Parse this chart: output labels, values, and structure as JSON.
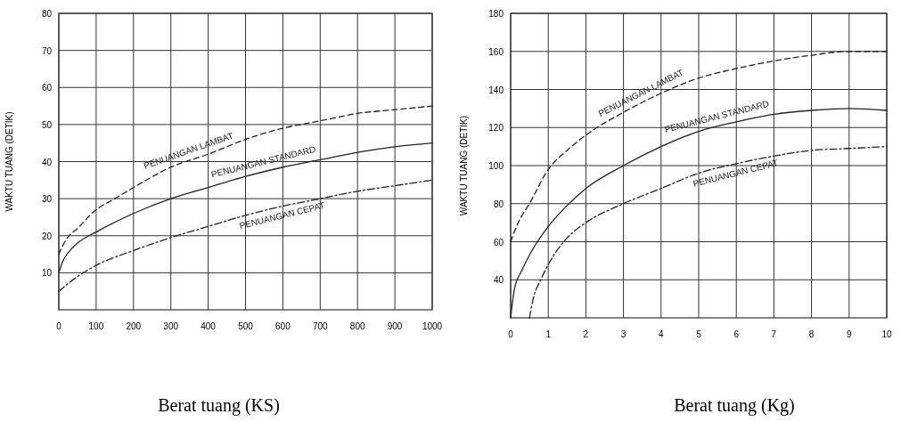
{
  "chart_data": [
    {
      "type": "line",
      "xlabel": "Berat tuang (KS)",
      "ylabel": "WAKTU TUANG (DETIK)",
      "xlim": [
        0,
        1000
      ],
      "ylim": [
        0,
        80
      ],
      "xticks": [
        0,
        100,
        200,
        300,
        400,
        500,
        600,
        700,
        800,
        900,
        1000
      ],
      "yticks": [
        10,
        20,
        30,
        40,
        50,
        60,
        70,
        80
      ],
      "grid": true,
      "series": [
        {
          "name": "PENUANGAN LAMBAT",
          "color": "#222222",
          "line_style": "dashed",
          "x": [
            0,
            20,
            50,
            100,
            150,
            200,
            300,
            400,
            500,
            600,
            700,
            800,
            900,
            1000
          ],
          "values": [
            15,
            19,
            22,
            27,
            30,
            33,
            38.5,
            42,
            46,
            49,
            51,
            53,
            54,
            55
          ]
        },
        {
          "name": "PENUANGAN STANDARD",
          "color": "#222222",
          "line_style": "solid",
          "x": [
            0,
            10,
            30,
            50,
            100,
            200,
            300,
            400,
            500,
            600,
            700,
            800,
            900,
            1000
          ],
          "values": [
            10,
            13,
            16,
            18,
            21,
            26,
            30,
            33,
            36,
            38.5,
            40.5,
            42.5,
            44,
            45
          ]
        },
        {
          "name": "PENUANGAN CEPAT",
          "color": "#222222",
          "line_style": "dashdot",
          "x": [
            0,
            50,
            100,
            200,
            300,
            400,
            500,
            600,
            700,
            800,
            900,
            1000
          ],
          "values": [
            5,
            9,
            12,
            16,
            19.5,
            22.5,
            25.5,
            28,
            30,
            32,
            33.5,
            35
          ]
        }
      ]
    },
    {
      "type": "line",
      "xlabel": "Berat tuang (Kg)",
      "ylabel": "WAKTU TUANG (DETIK)",
      "xlim": [
        0,
        10
      ],
      "ylim": [
        20,
        180
      ],
      "xticks": [
        0,
        1,
        2,
        3,
        4,
        5,
        6,
        7,
        8,
        9,
        10
      ],
      "yticks": [
        40,
        60,
        80,
        100,
        120,
        140,
        160,
        180
      ],
      "grid": true,
      "series": [
        {
          "name": "PENUANGAN LAMBAT",
          "color": "#222222",
          "line_style": "dashed",
          "x": [
            0,
            0.2,
            0.5,
            1,
            1.5,
            2,
            3,
            4,
            5,
            6,
            7,
            8,
            9,
            10
          ],
          "values": [
            60,
            70,
            80,
            98,
            108,
            116,
            128,
            138,
            146,
            151,
            155,
            158,
            160,
            160
          ]
        },
        {
          "name": "PENUANGAN STANDARD",
          "color": "#222222",
          "line_style": "solid",
          "x": [
            0,
            0.1,
            0.3,
            0.5,
            1,
            1.5,
            2,
            3,
            4,
            5,
            6,
            7,
            8,
            9,
            10
          ],
          "values": [
            20,
            35,
            45,
            53,
            68,
            79,
            88,
            100,
            110,
            118,
            123,
            127,
            129,
            130,
            129
          ]
        },
        {
          "name": "PENUANGAN CEPAT",
          "color": "#222222",
          "line_style": "dashdot",
          "x": [
            0.5,
            0.6,
            0.8,
            1,
            1.5,
            2,
            3,
            4,
            5,
            6,
            7,
            8,
            9,
            10
          ],
          "values": [
            20,
            30,
            40,
            48,
            62,
            70,
            80,
            88,
            96,
            101,
            105,
            108,
            109,
            110
          ]
        }
      ]
    }
  ]
}
